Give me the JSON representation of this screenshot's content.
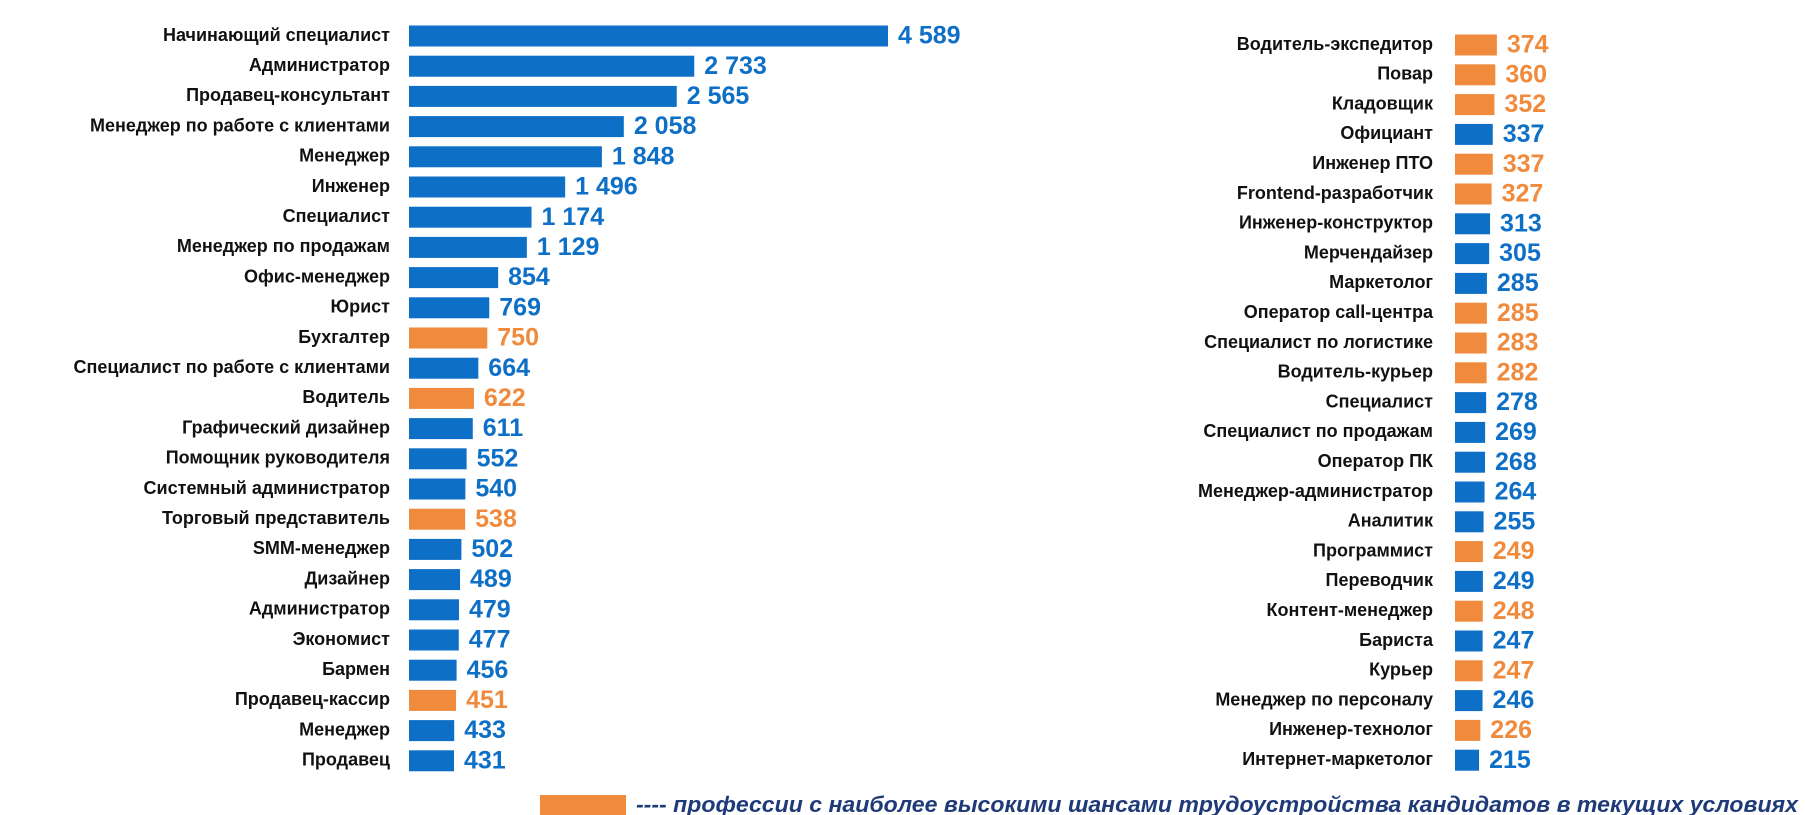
{
  "chart_data": [
    {
      "type": "bar",
      "categories": [
        "Начинающий специалист",
        "Администратор",
        "Продавец-консультант",
        "Менеджер по работе с клиентами",
        "Менеджер",
        "Инженер",
        "Специалист",
        "Менеджер по продажам",
        "Офис-менеджер",
        "Юрист",
        "Бухгалтер",
        "Специалист по работе с клиентами",
        "Водитель",
        "Графический дизайнер",
        "Помощник руководителя",
        "Системный администратор",
        "Торговый представитель",
        "SMM-менеджер",
        "Дизайнер",
        "Администратор",
        "Экономист",
        "Бармен",
        "Продавец-кассир",
        "Менеджер",
        "Продавец"
      ],
      "values": [
        4589,
        2733,
        2565,
        2058,
        1848,
        1496,
        1174,
        1129,
        854,
        769,
        750,
        664,
        622,
        611,
        552,
        540,
        538,
        502,
        489,
        479,
        477,
        456,
        451,
        433,
        431
      ],
      "value_labels": [
        "4 589",
        "2 733",
        "2 565",
        "2 058",
        "1 848",
        "1 496",
        "1 174",
        "1 129",
        "854",
        "769",
        "750",
        "664",
        "622",
        "611",
        "552",
        "540",
        "538",
        "502",
        "489",
        "479",
        "477",
        "456",
        "451",
        "433",
        "431"
      ],
      "colors": [
        "#0e6fc6",
        "#0e6fc6",
        "#0e6fc6",
        "#0e6fc6",
        "#0e6fc6",
        "#0e6fc6",
        "#0e6fc6",
        "#0e6fc6",
        "#0e6fc6",
        "#0e6fc6",
        "#f08a3c",
        "#0e6fc6",
        "#f08a3c",
        "#0e6fc6",
        "#0e6fc6",
        "#0e6fc6",
        "#f08a3c",
        "#0e6fc6",
        "#0e6fc6",
        "#0e6fc6",
        "#0e6fc6",
        "#0e6fc6",
        "#f08a3c",
        "#0e6fc6",
        "#0e6fc6"
      ]
    },
    {
      "type": "bar",
      "categories": [
        "Водитель-экспедитор",
        "Повар",
        "Кладовщик",
        "Официант",
        "Инженер ПТО",
        "Frontend-разработчик",
        "Инженер-конструктор",
        "Мерчендайзер",
        "Маркетолог",
        "Оператор call-центра",
        "Специалист по логистике",
        "Водитель-курьер",
        "Специалист",
        "Специалист по продажам",
        "Оператор ПК",
        "Менеджер-администратор",
        "Аналитик",
        "Программист",
        "Переводчик",
        "Контент-менеджер",
        "Бариста",
        "Курьер",
        "Менеджер по персоналу",
        "Инженер-технолог",
        "Интернет-маркетолог"
      ],
      "values": [
        374,
        360,
        352,
        337,
        337,
        327,
        313,
        305,
        285,
        285,
        283,
        282,
        278,
        269,
        268,
        264,
        255,
        249,
        249,
        248,
        247,
        247,
        246,
        226,
        215
      ],
      "colors": [
        "#f08a3c",
        "#f08a3c",
        "#f08a3c",
        "#0e6fc6",
        "#f08a3c",
        "#f08a3c",
        "#0e6fc6",
        "#0e6fc6",
        "#0e6fc6",
        "#f08a3c",
        "#f08a3c",
        "#f08a3c",
        "#0e6fc6",
        "#0e6fc6",
        "#0e6fc6",
        "#0e6fc6",
        "#0e6fc6",
        "#f08a3c",
        "#0e6fc6",
        "#f08a3c",
        "#0e6fc6",
        "#f08a3c",
        "#0e6fc6",
        "#f08a3c",
        "#0e6fc6"
      ]
    }
  ],
  "legend": {
    "color": "#f08a3c",
    "label": "---- профессии с наиболее высокими шансами трудоустройства кандидатов в текущих условиях"
  }
}
